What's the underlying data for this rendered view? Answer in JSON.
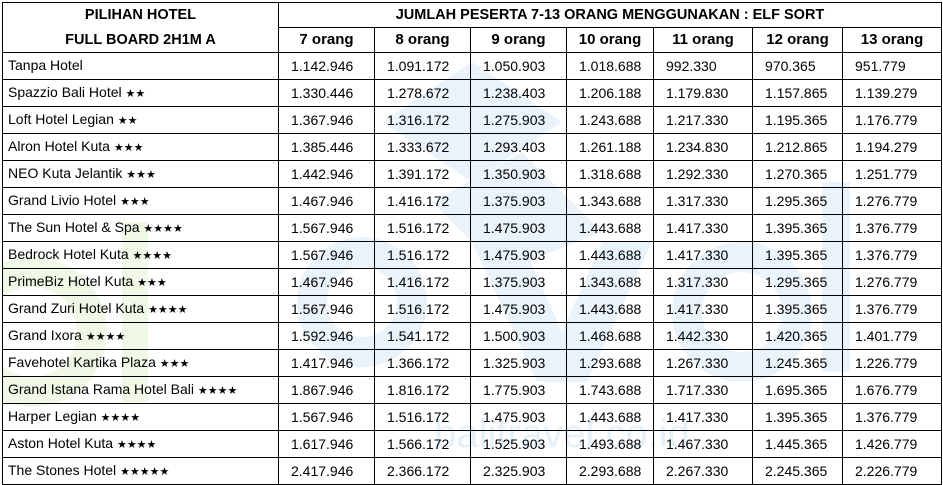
{
  "header": {
    "left_line1": "PILIHAN HOTEL",
    "left_line2": "FULL BOARD 2H1M A",
    "group_title": "JUMLAH PESERTA 7-13 ORANG MENGGUNAKAN : ELF SORT"
  },
  "columns": [
    "7 orang",
    "8 orang",
    "9 orang",
    "10 orang",
    "11 orang",
    "12 orang",
    "13 orang"
  ],
  "rows": [
    {
      "name": "Tanpa Hotel",
      "stars": "",
      "prices": [
        "1.142.946",
        "1.091.172",
        "1.050.903",
        "1.018.688",
        "992.330",
        "970.365",
        "951.779"
      ]
    },
    {
      "name": "Spazzio Bali Hotel",
      "stars": "★★",
      "prices": [
        "1.330.446",
        "1.278.672",
        "1.238.403",
        "1.206.188",
        "1.179.830",
        "1.157.865",
        "1.139.279"
      ]
    },
    {
      "name": "Loft Hotel Legian",
      "stars": "★★",
      "prices": [
        "1.367.946",
        "1.316.172",
        "1.275.903",
        "1.243.688",
        "1.217.330",
        "1.195.365",
        "1.176.779"
      ]
    },
    {
      "name": "Alron Hotel Kuta",
      "stars": "★★★",
      "prices": [
        "1.385.446",
        "1.333.672",
        "1.293.403",
        "1.261.188",
        "1.234.830",
        "1.212.865",
        "1.194.279"
      ]
    },
    {
      "name": "NEO Kuta Jelantik",
      "stars": "★★★",
      "prices": [
        "1.442.946",
        "1.391.172",
        "1.350.903",
        "1.318.688",
        "1.292.330",
        "1.270.365",
        "1.251.779"
      ]
    },
    {
      "name": "Grand Livio Hotel",
      "stars": "★★★",
      "prices": [
        "1.467.946",
        "1.416.172",
        "1.375.903",
        "1.343.688",
        "1.317.330",
        "1.295.365",
        "1.276.779"
      ]
    },
    {
      "name": "The Sun Hotel & Spa",
      "stars": "★★★★",
      "prices": [
        "1.567.946",
        "1.516.172",
        "1.475.903",
        "1.443.688",
        "1.417.330",
        "1.395.365",
        "1.376.779"
      ]
    },
    {
      "name": "Bedrock Hotel Kuta",
      "stars": "★★★★",
      "prices": [
        "1.567.946",
        "1.516.172",
        "1.475.903",
        "1.443.688",
        "1.417.330",
        "1.395.365",
        "1.376.779"
      ]
    },
    {
      "name": "PrimeBiz Hotel Kuta",
      "stars": "★★★",
      "prices": [
        "1.467.946",
        "1.416.172",
        "1.375.903",
        "1.343.688",
        "1.317.330",
        "1.295.365",
        "1.276.779"
      ]
    },
    {
      "name": "Grand Zuri Hotel Kuta",
      "stars": "★★★★",
      "prices": [
        "1.567.946",
        "1.516.172",
        "1.475.903",
        "1.443.688",
        "1.417.330",
        "1.395.365",
        "1.376.779"
      ]
    },
    {
      "name": "Grand Ixora",
      "stars": "★★★★",
      "prices": [
        "1.592.946",
        "1.541.172",
        "1.500.903",
        "1.468.688",
        "1.442.330",
        "1.420.365",
        "1.401.779"
      ]
    },
    {
      "name": "Favehotel Kartika Plaza",
      "stars": "★★★",
      "prices": [
        "1.417.946",
        "1.366.172",
        "1.325.903",
        "1.293.688",
        "1.267.330",
        "1.245.365",
        "1.226.779"
      ]
    },
    {
      "name": "Grand Istana Rama Hotel Bali",
      "stars": "★★★★",
      "prices": [
        "1.867.946",
        "1.816.172",
        "1.775.903",
        "1.743.688",
        "1.717.330",
        "1.695.365",
        "1.676.779"
      ]
    },
    {
      "name": "Harper Legian",
      "stars": "★★★★",
      "prices": [
        "1.567.946",
        "1.516.172",
        "1.475.903",
        "1.443.688",
        "1.417.330",
        "1.395.365",
        "1.376.779"
      ]
    },
    {
      "name": "Aston Hotel Kuta",
      "stars": "★★★★",
      "prices": [
        "1.617.946",
        "1.566.172",
        "1.525.903",
        "1.493.688",
        "1.467.330",
        "1.445.365",
        "1.426.779"
      ]
    },
    {
      "name": "The Stones Hotel",
      "stars": "★★★★★",
      "prices": [
        "2.417.946",
        "2.366.172",
        "2.325.903",
        "2.293.688",
        "2.267.330",
        "2.245.365",
        "2.226.779"
      ]
    }
  ],
  "watermark": {
    "text": "balitravel.co.id",
    "color_green": "#8cc63f",
    "color_blue": "#5aa6d8"
  }
}
